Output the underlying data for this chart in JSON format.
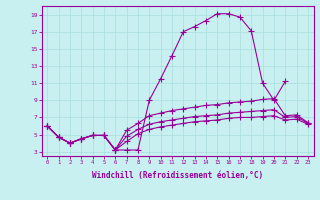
{
  "xlabel": "Windchill (Refroidissement éolien,°C)",
  "bg_color": "#c8f0f0",
  "line_color": "#990099",
  "grid_color": "#aadddd",
  "xmin": -0.5,
  "xmax": 23.5,
  "ymin": 2.5,
  "ymax": 20.0,
  "yticks": [
    3,
    5,
    7,
    9,
    11,
    13,
    15,
    17,
    19
  ],
  "xticks": [
    0,
    1,
    2,
    3,
    4,
    5,
    6,
    7,
    8,
    9,
    10,
    11,
    12,
    13,
    14,
    15,
    16,
    17,
    18,
    19,
    20,
    21,
    22,
    23
  ],
  "curves": [
    {
      "x": [
        0,
        1,
        2,
        3,
        4,
        5,
        6,
        7,
        8,
        9,
        10,
        11,
        12,
        13,
        14,
        15,
        16,
        17,
        18,
        19,
        20,
        21
      ],
      "y": [
        6.0,
        4.7,
        4.0,
        4.5,
        4.9,
        4.9,
        3.2,
        3.2,
        3.2,
        9.0,
        11.5,
        14.2,
        17.0,
        17.6,
        18.3,
        19.1,
        19.1,
        18.7,
        17.1,
        11.0,
        9.0,
        11.2
      ]
    },
    {
      "x": [
        0,
        1,
        2,
        3,
        4,
        5,
        6,
        7,
        8,
        9,
        10,
        11,
        12,
        13,
        14,
        15,
        16,
        17,
        18,
        19,
        20,
        21,
        22,
        23
      ],
      "y": [
        6.0,
        4.7,
        4.0,
        4.5,
        4.9,
        4.9,
        3.2,
        5.5,
        6.3,
        7.2,
        7.5,
        7.8,
        8.0,
        8.2,
        8.4,
        8.5,
        8.7,
        8.8,
        8.9,
        9.1,
        9.2,
        7.2,
        7.3,
        6.4
      ]
    },
    {
      "x": [
        0,
        1,
        2,
        3,
        4,
        5,
        6,
        7,
        8,
        9,
        10,
        11,
        12,
        13,
        14,
        15,
        16,
        17,
        18,
        19,
        20,
        21,
        22,
        23
      ],
      "y": [
        6.0,
        4.7,
        4.0,
        4.5,
        4.9,
        4.9,
        3.2,
        4.8,
        5.6,
        6.2,
        6.5,
        6.7,
        6.9,
        7.1,
        7.2,
        7.3,
        7.5,
        7.6,
        7.7,
        7.8,
        7.9,
        7.0,
        7.1,
        6.3
      ]
    },
    {
      "x": [
        0,
        1,
        2,
        3,
        4,
        5,
        6,
        7,
        8,
        9,
        10,
        11,
        12,
        13,
        14,
        15,
        16,
        17,
        18,
        19,
        20,
        21,
        22,
        23
      ],
      "y": [
        6.0,
        4.7,
        4.0,
        4.5,
        4.9,
        4.9,
        3.2,
        4.2,
        5.1,
        5.6,
        5.9,
        6.1,
        6.3,
        6.5,
        6.6,
        6.7,
        6.9,
        7.0,
        7.0,
        7.1,
        7.2,
        6.7,
        6.8,
        6.2
      ]
    }
  ]
}
